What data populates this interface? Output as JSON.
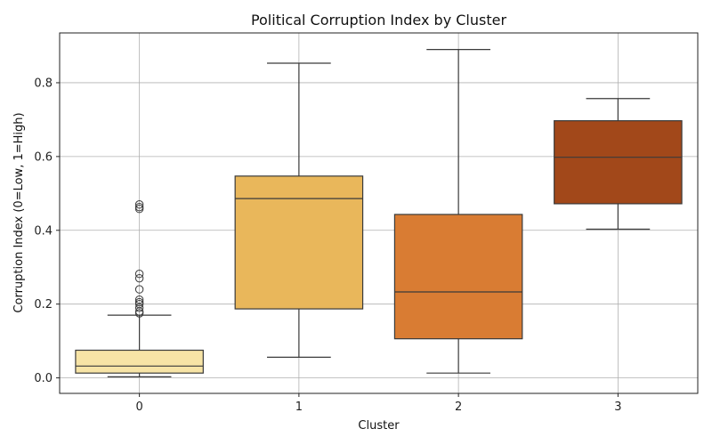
{
  "chart_data": {
    "type": "box",
    "title": "Political Corruption Index by Cluster",
    "xlabel": "Cluster",
    "ylabel": "Corruption Index (0=Low, 1=High)",
    "ylim": [
      -0.042,
      0.935
    ],
    "yticks": [
      0.0,
      0.2,
      0.4,
      0.6,
      0.8
    ],
    "ytick_labels": [
      "0.0",
      "0.2",
      "0.4",
      "0.6",
      "0.8"
    ],
    "grid": true,
    "categories": [
      "0",
      "1",
      "2",
      "3"
    ],
    "boxes": [
      {
        "category": "0",
        "whisker_low": 0.003,
        "q1": 0.013,
        "median": 0.032,
        "q3": 0.075,
        "whisker_high": 0.17,
        "outliers": [
          0.175,
          0.18,
          0.19,
          0.2,
          0.205,
          0.212,
          0.24,
          0.27,
          0.282,
          0.458,
          0.463,
          0.47
        ],
        "color": "#f7e4a6"
      },
      {
        "category": "1",
        "whisker_low": 0.056,
        "q1": 0.187,
        "median": 0.486,
        "q3": 0.547,
        "whisker_high": 0.853,
        "outliers": [],
        "color": "#e9b75b"
      },
      {
        "category": "2",
        "whisker_low": 0.013,
        "q1": 0.106,
        "median": 0.233,
        "q3": 0.443,
        "whisker_high": 0.89,
        "outliers": [],
        "color": "#d97c33"
      },
      {
        "category": "3",
        "whisker_low": 0.403,
        "q1": 0.472,
        "median": 0.598,
        "q3": 0.697,
        "whisker_high": 0.757,
        "outliers": [],
        "color": "#a2481a"
      }
    ]
  }
}
